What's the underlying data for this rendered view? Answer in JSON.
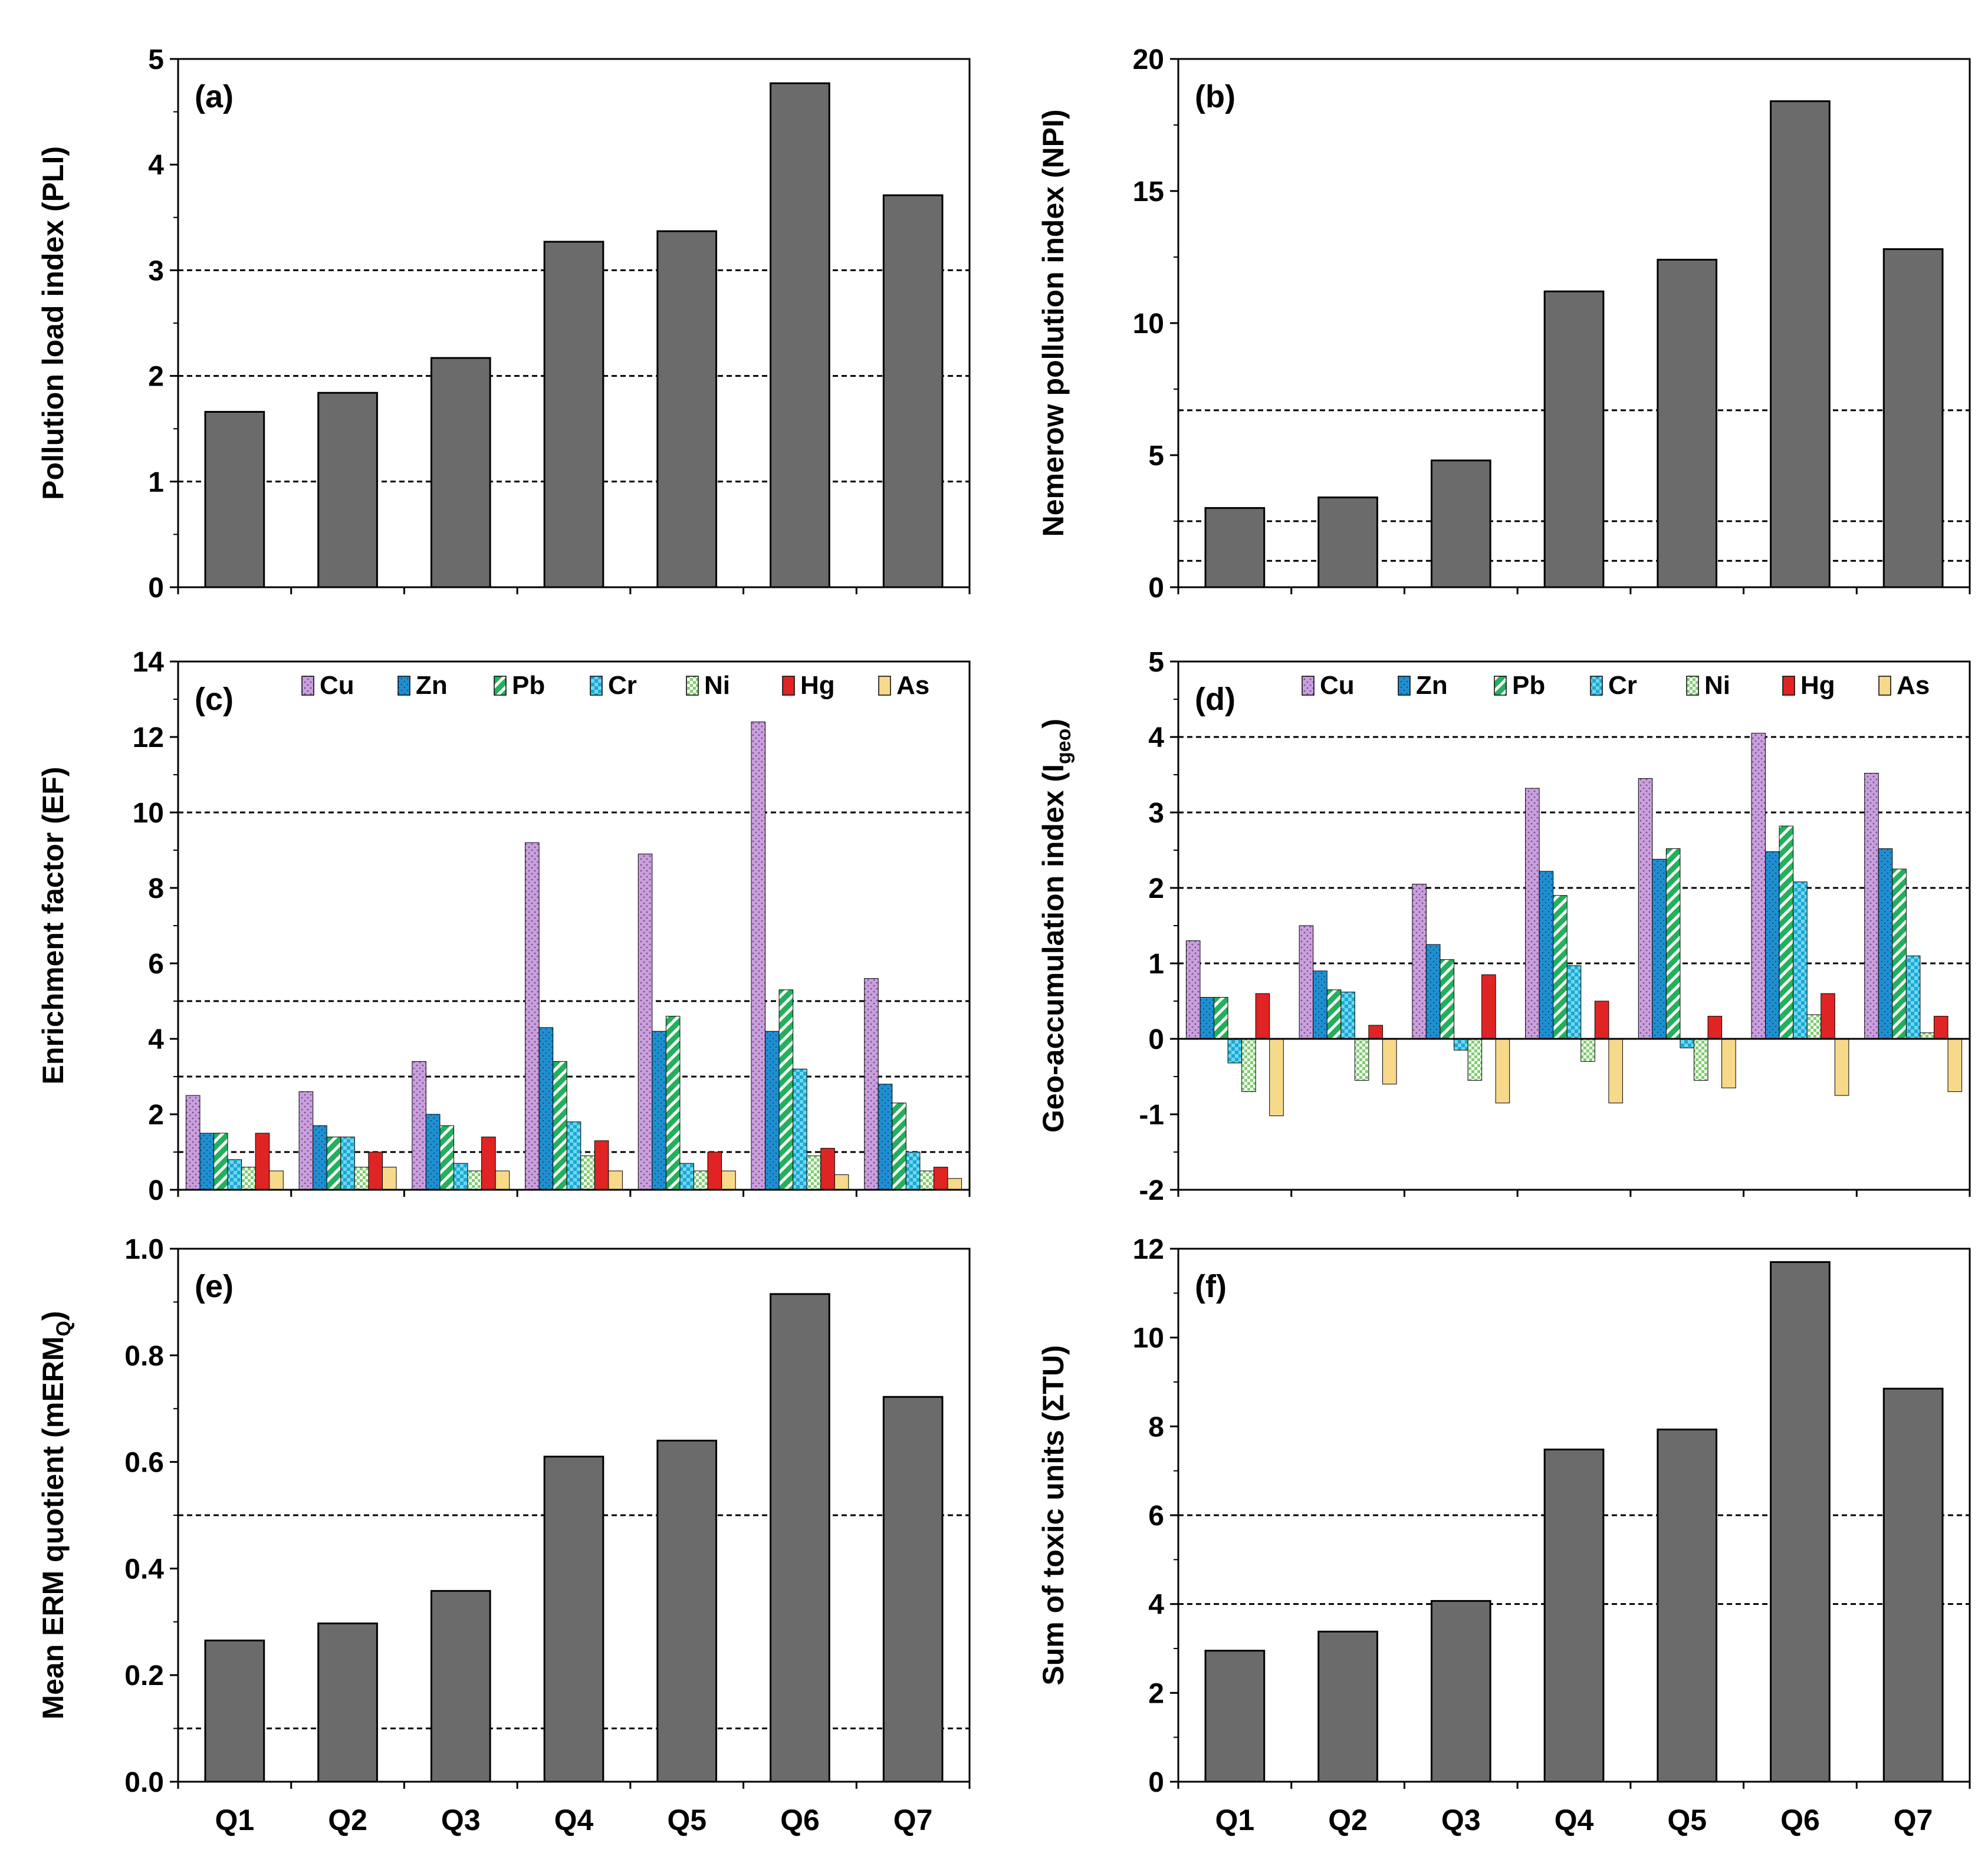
{
  "figure": {
    "categories": [
      "Q1",
      "Q2",
      "Q3",
      "Q4",
      "Q5",
      "Q6",
      "Q7"
    ],
    "bar_color": "#6b6b6b",
    "metals": [
      "Cu",
      "Zn",
      "Pb",
      "Cr",
      "Ni",
      "Hg",
      "As"
    ],
    "metal_colors": {
      "Cu": "#c9a0dc",
      "Zn": "#1f8fd0",
      "Pb": "#22b05a",
      "Cr": "#6fd8f2",
      "Ni": "#9ed88a",
      "Hg": "#e02424",
      "As": "#f7d98a"
    }
  },
  "chart_data": [
    {
      "id": "a",
      "type": "bar",
      "panel_label": "(a)",
      "ylabel": "Pollution load index (PLI)",
      "ylim": [
        0,
        5
      ],
      "yticks": [
        0,
        1,
        2,
        3,
        4,
        5
      ],
      "ytick_labels": [
        "0",
        "1",
        "2",
        "3",
        "4",
        "5"
      ],
      "reference_lines": [
        1,
        2,
        3
      ],
      "categories": [
        "Q1",
        "Q2",
        "Q3",
        "Q4",
        "Q5",
        "Q6",
        "Q7"
      ],
      "values": [
        1.66,
        1.84,
        2.17,
        3.27,
        3.37,
        4.77,
        3.71
      ]
    },
    {
      "id": "b",
      "type": "bar",
      "panel_label": "(b)",
      "ylabel": "Nemerow pollution index (NPI)",
      "ylim": [
        0,
        20
      ],
      "yticks": [
        0,
        5,
        10,
        15,
        20
      ],
      "ytick_labels": [
        "0",
        "5",
        "10",
        "15",
        "20"
      ],
      "reference_lines": [
        1,
        2.5,
        6.7
      ],
      "categories": [
        "Q1",
        "Q2",
        "Q3",
        "Q4",
        "Q5",
        "Q6",
        "Q7"
      ],
      "values": [
        3.0,
        3.4,
        4.8,
        11.2,
        12.4,
        18.4,
        12.8
      ]
    },
    {
      "id": "c",
      "type": "bar",
      "panel_label": "(c)",
      "ylabel": "Enrichment factor (EF)",
      "ylim": [
        0,
        14
      ],
      "yticks": [
        0,
        2,
        4,
        6,
        8,
        10,
        12,
        14
      ],
      "ytick_labels": [
        "0",
        "2",
        "4",
        "6",
        "8",
        "10",
        "12",
        "14"
      ],
      "reference_lines": [
        1,
        3,
        5,
        10
      ],
      "categories": [
        "Q1",
        "Q2",
        "Q3",
        "Q4",
        "Q5",
        "Q6",
        "Q7"
      ],
      "legend": [
        "Cu",
        "Zn",
        "Pb",
        "Cr",
        "Ni",
        "Hg",
        "As"
      ],
      "series": [
        {
          "name": "Cu",
          "values": [
            2.5,
            2.6,
            3.4,
            9.2,
            8.9,
            12.4,
            5.6
          ]
        },
        {
          "name": "Zn",
          "values": [
            1.5,
            1.7,
            2.0,
            4.3,
            4.2,
            4.2,
            2.8
          ]
        },
        {
          "name": "Pb",
          "values": [
            1.5,
            1.4,
            1.7,
            3.4,
            4.6,
            5.3,
            2.3
          ]
        },
        {
          "name": "Cr",
          "values": [
            0.8,
            1.4,
            0.7,
            1.8,
            0.7,
            3.2,
            1.0
          ]
        },
        {
          "name": "Ni",
          "values": [
            0.6,
            0.6,
            0.5,
            0.9,
            0.5,
            0.9,
            0.5
          ]
        },
        {
          "name": "Hg",
          "values": [
            1.5,
            1.0,
            1.4,
            1.3,
            1.0,
            1.1,
            0.6
          ]
        },
        {
          "name": "As",
          "values": [
            0.5,
            0.6,
            0.5,
            0.5,
            0.5,
            0.4,
            0.3
          ]
        }
      ]
    },
    {
      "id": "d",
      "type": "bar",
      "panel_label": "(d)",
      "ylabel_main": "Geo-accumulation index (I",
      "ylabel_sub": "geo",
      "ylabel_end": ")",
      "ylim": [
        -2,
        5
      ],
      "yticks": [
        -2,
        -1,
        0,
        1,
        2,
        3,
        4,
        5
      ],
      "ytick_labels": [
        "-2",
        "-1",
        "0",
        "1",
        "2",
        "3",
        "4",
        "5"
      ],
      "reference_lines": [
        1,
        2,
        3,
        4
      ],
      "categories": [
        "Q1",
        "Q2",
        "Q3",
        "Q4",
        "Q5",
        "Q6",
        "Q7"
      ],
      "legend": [
        "Cu",
        "Zn",
        "Pb",
        "Cr",
        "Ni",
        "Hg",
        "As"
      ],
      "series": [
        {
          "name": "Cu",
          "values": [
            1.3,
            1.5,
            2.05,
            3.32,
            3.45,
            4.05,
            3.52
          ]
        },
        {
          "name": "Zn",
          "values": [
            0.55,
            0.9,
            1.25,
            2.22,
            2.38,
            2.48,
            2.52
          ]
        },
        {
          "name": "Pb",
          "values": [
            0.55,
            0.65,
            1.05,
            1.9,
            2.52,
            2.82,
            2.25
          ]
        },
        {
          "name": "Cr",
          "values": [
            -0.32,
            0.62,
            -0.15,
            0.97,
            -0.12,
            2.08,
            1.1
          ]
        },
        {
          "name": "Ni",
          "values": [
            -0.7,
            -0.55,
            -0.55,
            -0.3,
            -0.55,
            0.32,
            0.08
          ]
        },
        {
          "name": "Hg",
          "values": [
            0.6,
            0.18,
            0.85,
            0.5,
            0.3,
            0.6,
            0.3
          ]
        },
        {
          "name": "As",
          "values": [
            -1.02,
            -0.6,
            -0.85,
            -0.85,
            -0.65,
            -0.75,
            -0.7
          ]
        }
      ]
    },
    {
      "id": "e",
      "type": "bar",
      "panel_label": "(e)",
      "ylabel_main": "Mean ERM quotient (mERM",
      "ylabel_sub": "Q",
      "ylabel_end": ")",
      "ylim": [
        0,
        1
      ],
      "yticks": [
        0,
        0.2,
        0.4,
        0.6,
        0.8,
        1.0
      ],
      "ytick_labels": [
        "0.0",
        "0.2",
        "0.4",
        "0.6",
        "0.8",
        "1.0"
      ],
      "reference_lines": [
        0.1,
        0.5
      ],
      "categories": [
        "Q1",
        "Q2",
        "Q3",
        "Q4",
        "Q5",
        "Q6",
        "Q7"
      ],
      "values": [
        0.265,
        0.297,
        0.358,
        0.61,
        0.64,
        0.915,
        0.722
      ]
    },
    {
      "id": "f",
      "type": "bar",
      "panel_label": "(f)",
      "ylabel": "Sum of toxic units (ΣTU)",
      "ylim": [
        0,
        12
      ],
      "yticks": [
        0,
        2,
        4,
        6,
        8,
        10,
        12
      ],
      "ytick_labels": [
        "0",
        "2",
        "4",
        "6",
        "8",
        "10",
        "12"
      ],
      "reference_lines": [
        4,
        6
      ],
      "categories": [
        "Q1",
        "Q2",
        "Q3",
        "Q4",
        "Q5",
        "Q6",
        "Q7"
      ],
      "values": [
        2.95,
        3.38,
        4.07,
        7.48,
        7.93,
        11.7,
        8.85
      ]
    }
  ]
}
